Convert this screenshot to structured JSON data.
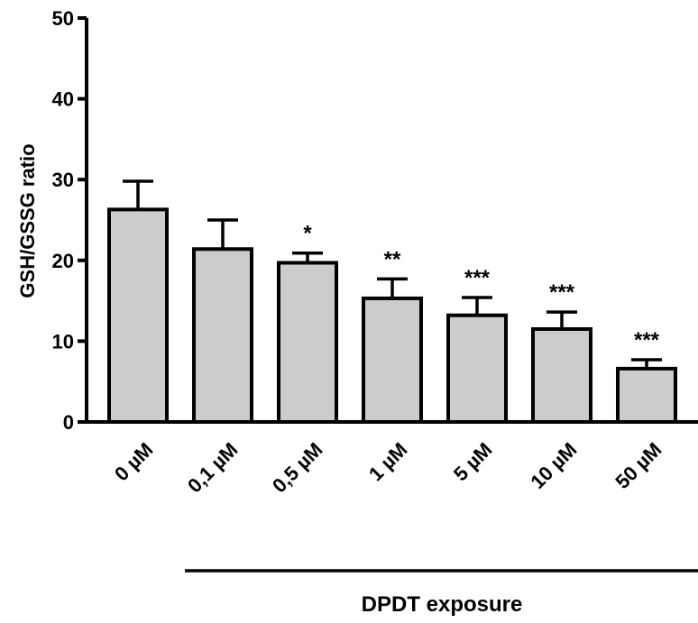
{
  "chart_data": {
    "type": "bar",
    "categories": [
      "0 µM",
      "0,1 µM",
      "0,5 µM",
      "1 µM",
      "5 µM",
      "10 µM",
      "50 µM"
    ],
    "values": [
      26.3,
      21.4,
      19.7,
      15.3,
      13.2,
      11.5,
      6.6
    ],
    "errors": [
      3.5,
      3.6,
      1.2,
      2.4,
      2.2,
      2.1,
      1.1
    ],
    "significance": [
      "",
      "",
      "*",
      "**",
      "***",
      "***",
      "***"
    ],
    "title": "",
    "xlabel": "DPDT exposure",
    "ylabel": "GSH/GSSG ratio",
    "ylim": [
      0,
      50
    ],
    "yticks": [
      0,
      10,
      20,
      30,
      40,
      50
    ],
    "grid": false,
    "bar_color": "#cccccc"
  }
}
